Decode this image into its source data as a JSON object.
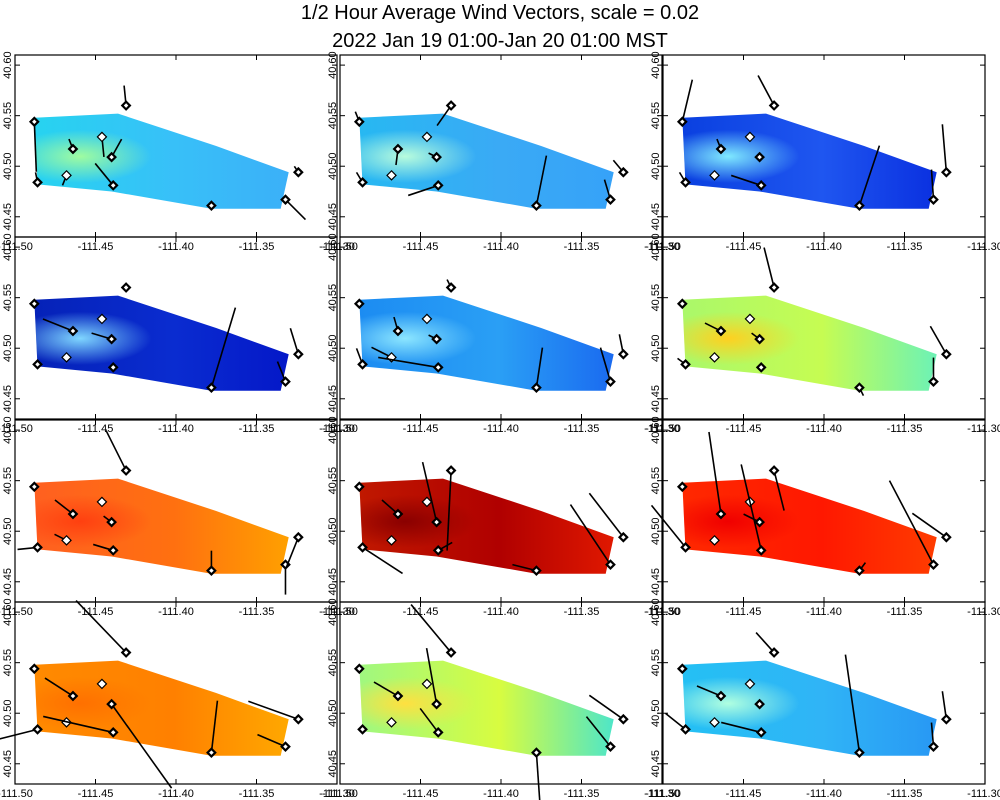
{
  "chart_data": {
    "type": "map",
    "title": "1/2 Hour Average Wind Vectors, scale =  0.02",
    "subtitle": "2022 Jan 19 01:00-Jan 20 01:00 MST",
    "xlim": [
      -111.5,
      -111.3
    ],
    "ylim": [
      40.43,
      40.61
    ],
    "x_ticks": [
      "-111.50",
      "-111.45",
      "-111.40",
      "-111.35",
      "-111.30"
    ],
    "y_ticks": [
      "40.45",
      "40.50",
      "40.55",
      "40.60"
    ],
    "stations": [
      {
        "name": "s1",
        "lon": -111.488,
        "lat": 40.544,
        "marker": "filled"
      },
      {
        "name": "s2",
        "lon": -111.486,
        "lat": 40.484,
        "marker": "filled"
      },
      {
        "name": "s3",
        "lon": -111.431,
        "lat": 40.56,
        "marker": "filled"
      },
      {
        "name": "s4",
        "lon": -111.446,
        "lat": 40.529,
        "marker": "open"
      },
      {
        "name": "s5",
        "lon": -111.464,
        "lat": 40.517,
        "marker": "filled"
      },
      {
        "name": "s6",
        "lon": -111.44,
        "lat": 40.509,
        "marker": "filled"
      },
      {
        "name": "s7",
        "lon": -111.468,
        "lat": 40.491,
        "marker": "open"
      },
      {
        "name": "s8",
        "lon": -111.439,
        "lat": 40.481,
        "marker": "filled"
      },
      {
        "name": "s9",
        "lon": -111.378,
        "lat": 40.461,
        "marker": "filled"
      },
      {
        "name": "s10",
        "lon": -111.332,
        "lat": 40.467,
        "marker": "filled"
      },
      {
        "name": "s11",
        "lon": -111.324,
        "lat": 40.494,
        "marker": "filled"
      }
    ],
    "panels": [
      {
        "id": 1,
        "colors": [
          "#27d3f0",
          "#9ffca0",
          "#38c0f8",
          "#3bb0f8"
        ],
        "vectors": [
          [
            2,
            50
          ],
          [
            -2,
            -10
          ],
          [
            -2,
            -20
          ],
          [
            2,
            20
          ],
          [
            -4,
            -10
          ],
          [
            10,
            -18
          ],
          [
            -4,
            10
          ],
          [
            -18,
            -22
          ],
          [
            2,
            2
          ],
          [
            20,
            20
          ],
          [
            -4,
            -6
          ]
        ]
      },
      {
        "id": 2,
        "colors": [
          "#27b8f2",
          "#b8fcdd",
          "#3aaaf5",
          "#36a2f8"
        ],
        "vectors": [
          [
            -4,
            -10
          ],
          [
            -6,
            -10
          ],
          [
            -14,
            20
          ],
          [
            2,
            2
          ],
          [
            -2,
            16
          ],
          [
            -8,
            -4
          ],
          [
            2,
            2
          ],
          [
            -30,
            10
          ],
          [
            10,
            -50
          ],
          [
            -6,
            -20
          ],
          [
            -10,
            -12
          ]
        ]
      },
      {
        "id": 3,
        "colors": [
          "#0a40e0",
          "#7fe9ff",
          "#1f56f0",
          "#0a30e0"
        ],
        "vectors": [
          [
            10,
            -42
          ],
          [
            -6,
            -10
          ],
          [
            -16,
            -30
          ],
          [
            2,
            2
          ],
          [
            -4,
            -10
          ],
          [
            2,
            2
          ],
          [
            2,
            2
          ],
          [
            -30,
            -10
          ],
          [
            20,
            -60
          ],
          [
            -2,
            -30
          ],
          [
            -4,
            -48
          ]
        ]
      },
      {
        "id": 4,
        "colors": [
          "#0522b8",
          "#7fd6ff",
          "#0a2cd0",
          "#0418c8"
        ],
        "vectors": [
          [
            2,
            2
          ],
          [
            -2,
            2
          ],
          [
            -2,
            2
          ],
          [
            2,
            2
          ],
          [
            -30,
            -12
          ],
          [
            -20,
            -6
          ],
          [
            -2,
            2
          ],
          [
            2,
            2
          ],
          [
            24,
            -80
          ],
          [
            -8,
            -20
          ],
          [
            -8,
            -26
          ]
        ]
      },
      {
        "id": 5,
        "colors": [
          "#1c8cf2",
          "#8ce6ff",
          "#2a9ff5",
          "#1a6af0"
        ],
        "vectors": [
          [
            2,
            2
          ],
          [
            -6,
            -16
          ],
          [
            -4,
            -8
          ],
          [
            2,
            2
          ],
          [
            -4,
            -14
          ],
          [
            -8,
            -4
          ],
          [
            -20,
            -10
          ],
          [
            -60,
            -10
          ],
          [
            6,
            -40
          ],
          [
            -10,
            -34
          ],
          [
            -4,
            -20
          ]
        ]
      },
      {
        "id": 6,
        "colors": [
          "#aaf86a",
          "#ffd020",
          "#c6fc52",
          "#6cf2b6"
        ],
        "vectors": [
          [
            2,
            2
          ],
          [
            -8,
            -6
          ],
          [
            -10,
            -40
          ],
          [
            2,
            2
          ],
          [
            -16,
            -8
          ],
          [
            -8,
            -6
          ],
          [
            2,
            2
          ],
          [
            2,
            2
          ],
          [
            4,
            8
          ],
          [
            0,
            -24
          ],
          [
            -16,
            -28
          ]
        ]
      },
      {
        "id": 7,
        "colors": [
          "#ff6020",
          "#ff4010",
          "#ff7010",
          "#ffa000"
        ],
        "vectors": [
          [
            2,
            2
          ],
          [
            -20,
            2
          ],
          [
            -20,
            -40
          ],
          [
            2,
            2
          ],
          [
            -18,
            -14
          ],
          [
            -8,
            -6
          ],
          [
            -12,
            -6
          ],
          [
            -20,
            -6
          ],
          [
            0,
            -20
          ],
          [
            0,
            30
          ],
          [
            -12,
            30
          ]
        ]
      },
      {
        "id": 8,
        "colors": [
          "#c01800",
          "#8a0000",
          "#b00000",
          "#e01800"
        ],
        "vectors": [
          [
            2,
            2
          ],
          [
            40,
            26
          ],
          [
            -4,
            80
          ],
          [
            2,
            2
          ],
          [
            -16,
            -14
          ],
          [
            -14,
            -60
          ],
          [
            2,
            2
          ],
          [
            14,
            -8
          ],
          [
            -24,
            -6
          ],
          [
            -40,
            -60
          ],
          [
            -34,
            -44
          ]
        ]
      },
      {
        "id": 9,
        "colors": [
          "#ff2800",
          "#f00000",
          "#ff1800",
          "#ff3c00"
        ],
        "vectors": [
          [
            2,
            2
          ],
          [
            -34,
            -42
          ],
          [
            10,
            40
          ],
          [
            2,
            2
          ],
          [
            -12,
            -82
          ],
          [
            -16,
            -8
          ],
          [
            2,
            2
          ],
          [
            -20,
            -86
          ],
          [
            6,
            -8
          ],
          [
            -44,
            -84
          ],
          [
            -34,
            -24
          ]
        ]
      },
      {
        "id": 10,
        "colors": [
          "#ff8a00",
          "#ff7000",
          "#ff8000",
          "#ffa800"
        ],
        "vectors": [
          [
            2,
            2
          ],
          [
            -40,
            10
          ],
          [
            -50,
            -52
          ],
          [
            2,
            2
          ],
          [
            -28,
            -18
          ],
          [
            60,
            84
          ],
          [
            2,
            2
          ],
          [
            -70,
            -16
          ],
          [
            6,
            -52
          ],
          [
            -28,
            -12
          ],
          [
            -50,
            -18
          ]
        ]
      },
      {
        "id": 11,
        "colors": [
          "#9ff880",
          "#ffe040",
          "#d8fc40",
          "#4ee6c8"
        ],
        "vectors": [
          [
            2,
            2
          ],
          [
            -2,
            2
          ],
          [
            -40,
            -48
          ],
          [
            2,
            2
          ],
          [
            -24,
            -14
          ],
          [
            -10,
            -56
          ],
          [
            2,
            2
          ],
          [
            -18,
            -24
          ],
          [
            4,
            58
          ],
          [
            -24,
            -30
          ],
          [
            -34,
            -24
          ]
        ]
      },
      {
        "id": 12,
        "colors": [
          "#24c0f4",
          "#b0ffe0",
          "#30b4f6",
          "#2898f4"
        ],
        "vectors": [
          [
            2,
            2
          ],
          [
            -20,
            -16
          ],
          [
            -18,
            -20
          ],
          [
            2,
            2
          ],
          [
            -24,
            -10
          ],
          [
            2,
            2
          ],
          [
            -2,
            2
          ],
          [
            -40,
            -10
          ],
          [
            -14,
            -98
          ],
          [
            -2,
            -24
          ],
          [
            -4,
            -28
          ]
        ]
      }
    ]
  }
}
